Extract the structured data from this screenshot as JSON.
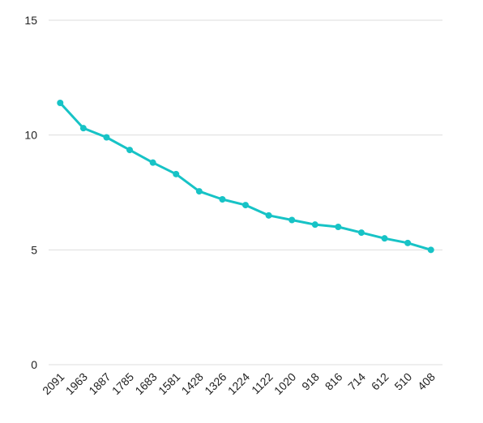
{
  "chart_data": {
    "type": "line",
    "categories": [
      "2091",
      "1963",
      "1887",
      "1785",
      "1683",
      "1581",
      "1428",
      "1326",
      "1224",
      "1122",
      "1020",
      "918",
      "816",
      "714",
      "612",
      "510",
      "408"
    ],
    "values": [
      11.4,
      10.3,
      9.9,
      9.35,
      8.8,
      8.3,
      7.55,
      7.2,
      6.95,
      6.5,
      6.3,
      6.1,
      6.0,
      5.75,
      5.5,
      5.3,
      5.0
    ],
    "color": "#17c3c6",
    "ylim": [
      0,
      15
    ],
    "yticks": [
      0,
      5,
      10,
      15
    ],
    "grid": true
  }
}
